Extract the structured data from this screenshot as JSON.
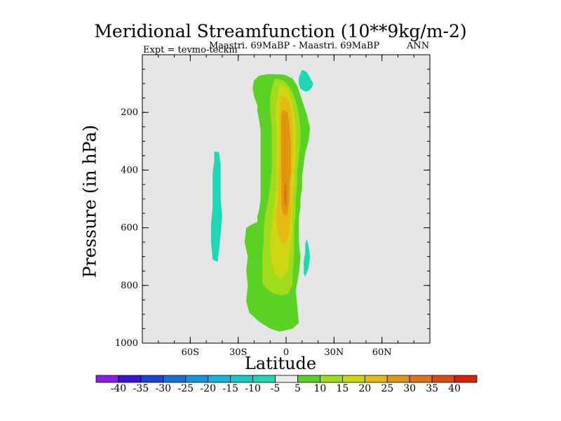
{
  "chart_data": {
    "type": "contour",
    "title": "Meridional Streamfunction (10**9kg/m-2)",
    "expt_label": "Expt = tevmo-teckm",
    "subtitle": "Maastri.  69MaBP - Maastri.  69MaBP",
    "period": "ANN",
    "xlabel": "Latitude",
    "ylabel": "Pressure (in hPa)",
    "xlim": [
      -90,
      90
    ],
    "ylim": [
      1000,
      0
    ],
    "x_ticks": [
      {
        "value": -60,
        "label": "60S"
      },
      {
        "value": -30,
        "label": "30S"
      },
      {
        "value": 0,
        "label": "0"
      },
      {
        "value": 30,
        "label": "30N"
      },
      {
        "value": 60,
        "label": "60N"
      }
    ],
    "y_ticks": [
      {
        "value": 200,
        "label": "200"
      },
      {
        "value": 400,
        "label": "400"
      },
      {
        "value": 600,
        "label": "600"
      },
      {
        "value": 800,
        "label": "800"
      },
      {
        "value": 1000,
        "label": "1000"
      }
    ],
    "colorbar": {
      "labels": [
        "-40",
        "-35",
        "-30",
        "-25",
        "-20",
        "-15",
        "-10",
        "-5",
        "5",
        "10",
        "15",
        "20",
        "25",
        "30",
        "35",
        "40"
      ],
      "colors": [
        "#8a1ee6",
        "#3c14d7",
        "#1e46d2",
        "#1473d7",
        "#1496dc",
        "#14b4dc",
        "#14c8c8",
        "#1ed7b4",
        "#eaeaea",
        "#5ad223",
        "#a0dc19",
        "#cdd714",
        "#e6b914",
        "#e1960f",
        "#dc7314",
        "#dc4b0f",
        "#d7230a"
      ]
    },
    "regions": [
      {
        "level": "5",
        "polygon": [
          [
            -17,
            73
          ],
          [
            -11,
            67
          ],
          [
            -1,
            69
          ],
          [
            4,
            82
          ],
          [
            7,
            108
          ],
          [
            10,
            158
          ],
          [
            13,
            208
          ],
          [
            15,
            255
          ],
          [
            14,
            300
          ],
          [
            12,
            340
          ],
          [
            11,
            380
          ],
          [
            10,
            420
          ],
          [
            10,
            460
          ],
          [
            9,
            500
          ],
          [
            9,
            530
          ],
          [
            8,
            560
          ],
          [
            8,
            600
          ],
          [
            8,
            650
          ],
          [
            9,
            700
          ],
          [
            8,
            760
          ],
          [
            6,
            820
          ],
          [
            7,
            870
          ],
          [
            8,
            930
          ],
          [
            4,
            950
          ],
          [
            -4,
            960
          ],
          [
            -10,
            950
          ],
          [
            -17,
            925
          ],
          [
            -23,
            895
          ],
          [
            -25,
            855
          ],
          [
            -24,
            800
          ],
          [
            -25,
            750
          ],
          [
            -24,
            700
          ],
          [
            -26,
            650
          ],
          [
            -25,
            600
          ],
          [
            -22,
            590
          ],
          [
            -18,
            580
          ],
          [
            -18,
            560
          ],
          [
            -17,
            540
          ],
          [
            -16,
            500
          ],
          [
            -16,
            450
          ],
          [
            -16,
            400
          ],
          [
            -16,
            350
          ],
          [
            -16,
            300
          ],
          [
            -16,
            260
          ],
          [
            -17,
            225
          ],
          [
            -18,
            195
          ],
          [
            -18,
            175
          ],
          [
            -20,
            145
          ],
          [
            -21,
            115
          ],
          [
            -20,
            88
          ]
        ]
      },
      {
        "level": "10",
        "polygon": [
          [
            -7,
            82
          ],
          [
            -1,
            91
          ],
          [
            3,
            118
          ],
          [
            6,
            158
          ],
          [
            8,
            208
          ],
          [
            9,
            258
          ],
          [
            9,
            300
          ],
          [
            8,
            350
          ],
          [
            7,
            400
          ],
          [
            7,
            450
          ],
          [
            6,
            500
          ],
          [
            6,
            550
          ],
          [
            5,
            600
          ],
          [
            5,
            650
          ],
          [
            5,
            700
          ],
          [
            4,
            750
          ],
          [
            4,
            800
          ],
          [
            1,
            830
          ],
          [
            -3,
            835
          ],
          [
            -8,
            828
          ],
          [
            -12,
            812
          ],
          [
            -15,
            790
          ],
          [
            -15,
            750
          ],
          [
            -15,
            700
          ],
          [
            -14,
            650
          ],
          [
            -14,
            600
          ],
          [
            -13,
            550
          ],
          [
            -11,
            500
          ],
          [
            -10,
            450
          ],
          [
            -9,
            400
          ],
          [
            -9,
            350
          ],
          [
            -9,
            300
          ],
          [
            -9,
            250
          ],
          [
            -10,
            200
          ],
          [
            -10,
            150
          ],
          [
            -9,
            115
          ]
        ]
      },
      {
        "level": "15",
        "polygon": [
          [
            -4,
            104
          ],
          [
            1,
            116
          ],
          [
            3,
            148
          ],
          [
            5,
            198
          ],
          [
            6,
            248
          ],
          [
            6,
            300
          ],
          [
            6,
            350
          ],
          [
            5,
            400
          ],
          [
            5,
            450
          ],
          [
            4,
            500
          ],
          [
            4,
            550
          ],
          [
            4,
            600
          ],
          [
            3,
            650
          ],
          [
            2,
            700
          ],
          [
            1,
            750
          ],
          [
            -3,
            778
          ],
          [
            -7,
            760
          ],
          [
            -9,
            720
          ],
          [
            -10,
            680
          ],
          [
            -10,
            640
          ],
          [
            -9,
            600
          ],
          [
            -8,
            550
          ],
          [
            -7,
            500
          ],
          [
            -6,
            450
          ],
          [
            -6,
            400
          ],
          [
            -6,
            350
          ],
          [
            -6,
            300
          ],
          [
            -6,
            250
          ],
          [
            -7,
            200
          ],
          [
            -6,
            160
          ],
          [
            -5,
            130
          ]
        ]
      },
      {
        "level": "20",
        "polygon": [
          [
            -3,
            140
          ],
          [
            1,
            152
          ],
          [
            3,
            188
          ],
          [
            4,
            238
          ],
          [
            4,
            300
          ],
          [
            4,
            350
          ],
          [
            4,
            400
          ],
          [
            3,
            450
          ],
          [
            3,
            500
          ],
          [
            3,
            550
          ],
          [
            2,
            600
          ],
          [
            1,
            640
          ],
          [
            -1,
            660
          ],
          [
            -3,
            650
          ],
          [
            -5,
            620
          ],
          [
            -6,
            580
          ],
          [
            -6,
            540
          ],
          [
            -5,
            500
          ],
          [
            -5,
            450
          ],
          [
            -5,
            400
          ],
          [
            -4,
            350
          ],
          [
            -4,
            300
          ],
          [
            -4,
            250
          ],
          [
            -4,
            200
          ],
          [
            -4,
            170
          ]
        ]
      },
      {
        "level": "25",
        "polygon": [
          [
            -2,
            190
          ],
          [
            1,
            200
          ],
          [
            2,
            240
          ],
          [
            3,
            300
          ],
          [
            3,
            350
          ],
          [
            3,
            400
          ],
          [
            2,
            450
          ],
          [
            2,
            500
          ],
          [
            1,
            545
          ],
          [
            0,
            560
          ],
          [
            -2,
            550
          ],
          [
            -3,
            520
          ],
          [
            -3,
            480
          ],
          [
            -3,
            440
          ],
          [
            -3,
            400
          ],
          [
            -3,
            350
          ],
          [
            -3,
            300
          ],
          [
            -3,
            250
          ],
          [
            -3,
            210
          ]
        ]
      },
      {
        "level": "30",
        "polygon": [
          [
            -0.8,
            440
          ],
          [
            0,
            450
          ],
          [
            0.5,
            480
          ],
          [
            0.2,
            515
          ],
          [
            -0.5,
            525
          ],
          [
            -1.2,
            510
          ],
          [
            -1.3,
            480
          ],
          [
            -1.2,
            455
          ]
        ]
      },
      {
        "level": "-5",
        "polygon": [
          [
            10,
            52
          ],
          [
            13,
            60
          ],
          [
            15,
            80
          ],
          [
            17,
            100
          ],
          [
            16,
            115
          ],
          [
            14,
            125
          ],
          [
            12,
            128
          ],
          [
            9,
            118
          ],
          [
            8,
            100
          ],
          [
            8,
            80
          ],
          [
            9,
            64
          ]
        ]
      },
      {
        "level": "-5",
        "polygon": [
          [
            -45,
            335
          ],
          [
            -42,
            338
          ],
          [
            -41,
            380
          ],
          [
            -41,
            440
          ],
          [
            -41,
            500
          ],
          [
            -40,
            560
          ],
          [
            -41,
            620
          ],
          [
            -42,
            680
          ],
          [
            -43,
            718
          ],
          [
            -46,
            710
          ],
          [
            -47,
            650
          ],
          [
            -47,
            590
          ],
          [
            -46,
            530
          ],
          [
            -46,
            470
          ],
          [
            -46,
            410
          ],
          [
            -45,
            370
          ]
        ]
      },
      {
        "level": "-5",
        "polygon": [
          [
            13,
            640
          ],
          [
            14,
            660
          ],
          [
            15,
            700
          ],
          [
            14,
            740
          ],
          [
            12,
            770
          ],
          [
            11,
            758
          ],
          [
            11,
            720
          ],
          [
            12,
            680
          ],
          [
            12,
            655
          ]
        ]
      }
    ]
  }
}
